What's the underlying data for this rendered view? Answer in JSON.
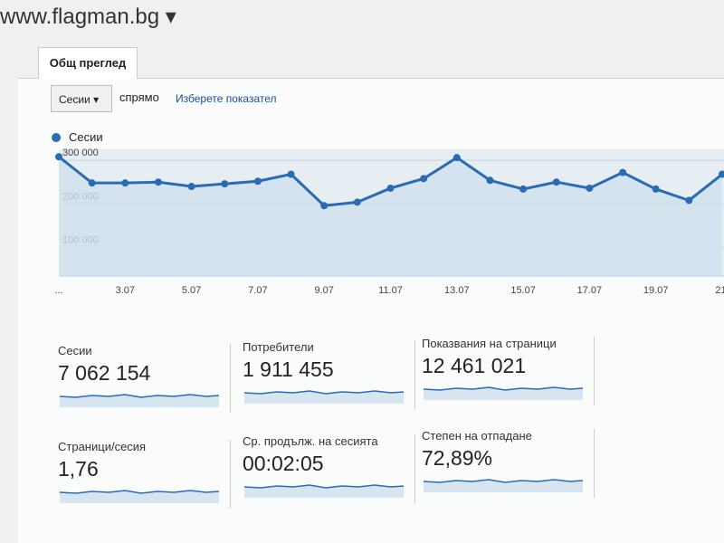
{
  "header": {
    "site": "www.flagman.bg"
  },
  "tab": {
    "label": "Общ преглед"
  },
  "controls": {
    "metric": "Сесии",
    "versus": "спрямо",
    "link": "Изберете показател"
  },
  "chart_data": {
    "type": "line",
    "categories": [
      "...",
      null,
      "3.07",
      null,
      "5.07",
      null,
      "7.07",
      null,
      "9.07",
      null,
      "11.07",
      null,
      "13.07",
      null,
      "15.07",
      null,
      "17.07",
      null,
      "19.07",
      null,
      "21."
    ],
    "series": [
      {
        "name": "Сесии",
        "color": "#2a6cb4",
        "values": [
          308000,
          248000,
          248000,
          250000,
          240000,
          246000,
          252000,
          268000,
          196000,
          204000,
          236000,
          258000,
          306000,
          254000,
          234000,
          250000,
          236000,
          272000,
          234000,
          208000,
          268000
        ]
      }
    ],
    "ylim": [
      35000,
      325000
    ],
    "yticks": [
      {
        "value": 100000,
        "label": "100 000"
      },
      {
        "value": 200000,
        "label": "200 000"
      },
      {
        "value": 300000,
        "label": "300 000"
      }
    ],
    "grid": true
  },
  "metrics": [
    {
      "label": "Сесии",
      "value": "7 062 154"
    },
    {
      "label": "Потребители",
      "value": "1 911 455"
    },
    {
      "label": "Показвания на страници",
      "value": "12 461 021"
    },
    {
      "label": "Страници/сесия",
      "value": "1,76"
    },
    {
      "label": "Ср. продълж. на сесията",
      "value": "00:02:05"
    },
    {
      "label": "Степен на отпадане",
      "value": "72,89%"
    }
  ]
}
